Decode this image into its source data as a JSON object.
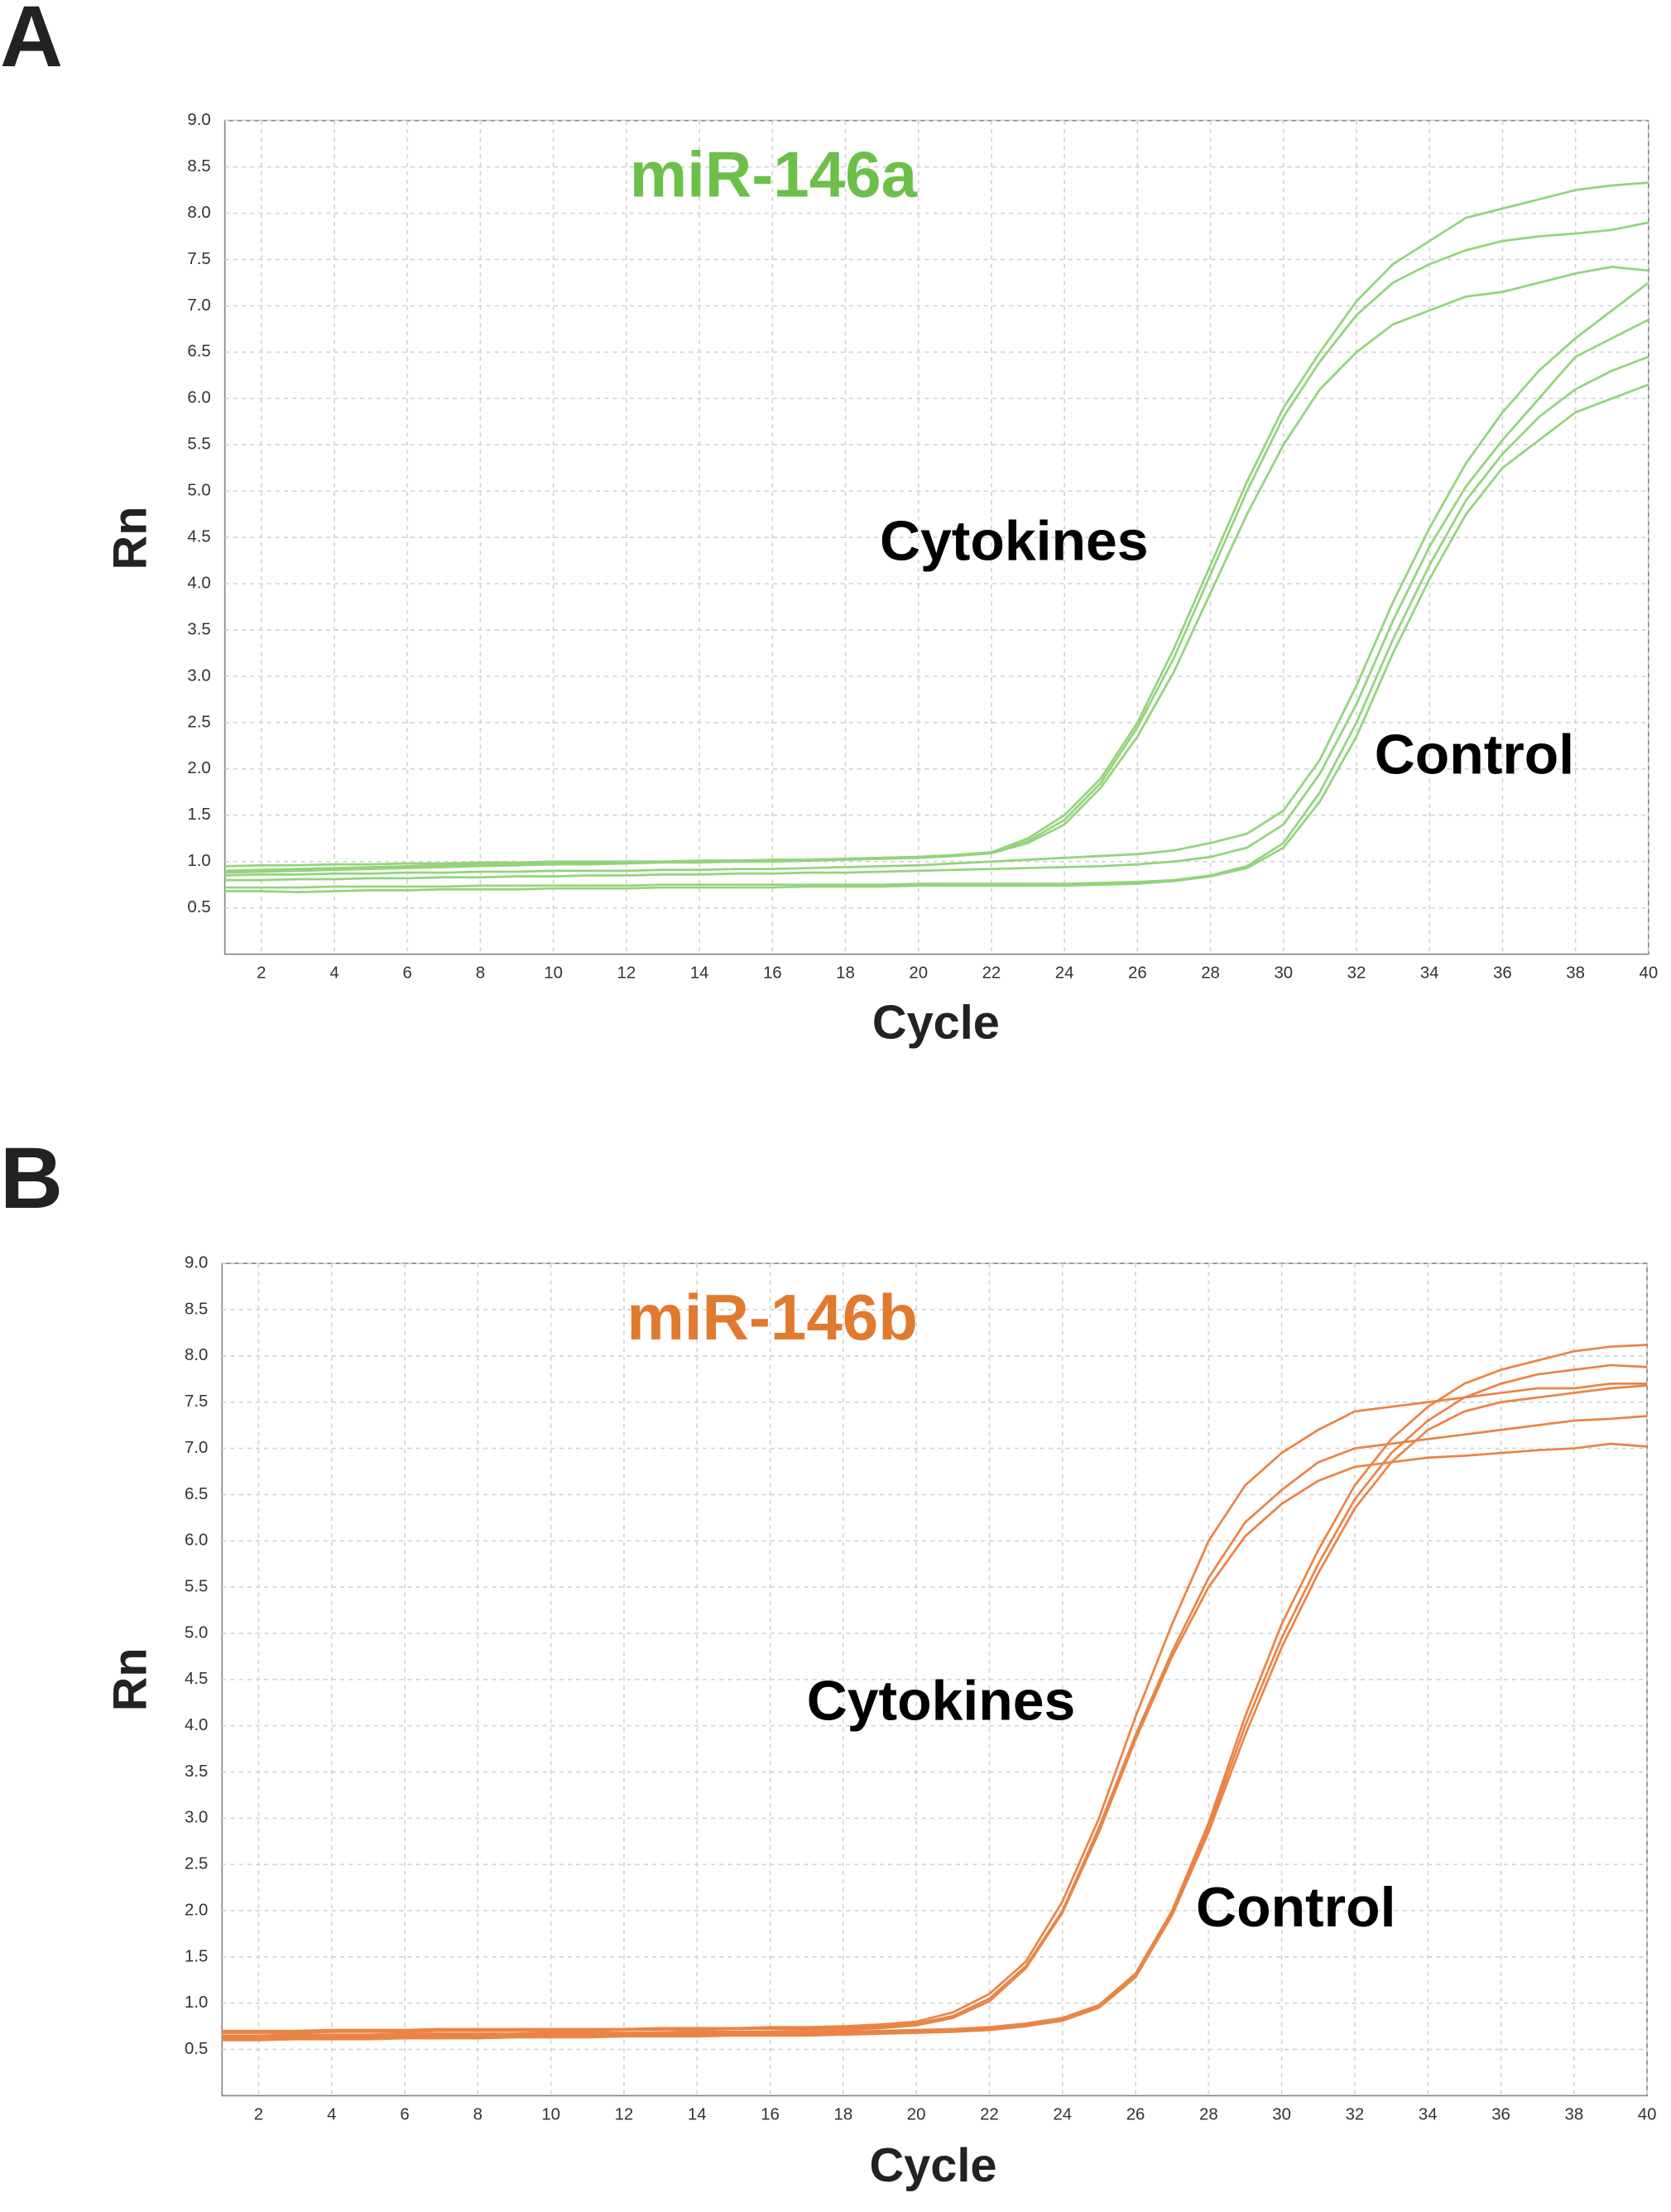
{
  "chart_data": [
    {
      "type": "line",
      "panel": "A",
      "title": "miR-146a",
      "title_color": "#6cc04a",
      "annotations": [
        "Cytokines",
        "Control"
      ],
      "xlabel": "Cycle",
      "ylabel": "Rn",
      "xlim": [
        1,
        40
      ],
      "ylim": [
        0,
        9
      ],
      "xticks": [
        2,
        4,
        6,
        8,
        10,
        12,
        14,
        16,
        18,
        20,
        22,
        24,
        26,
        28,
        30,
        32,
        34,
        36,
        38,
        40
      ],
      "yticks": [
        0.5,
        {
          "value": 1,
          "label": "1.0"
        },
        1.5,
        {
          "value": 2,
          "label": "2.0"
        },
        2.5,
        {
          "value": 3,
          "label": "3.0"
        },
        3.5,
        {
          "value": 4,
          "label": "4.0"
        },
        4.5,
        {
          "value": 5,
          "label": "5.0"
        },
        5.5,
        {
          "value": 6,
          "label": "6.0"
        },
        6.5,
        {
          "value": 7,
          "label": "7.0"
        },
        7.5,
        {
          "value": 8,
          "label": "8.0"
        },
        8.5,
        {
          "value": 9,
          "label": "9.0"
        }
      ],
      "grid": true,
      "x": [
        1,
        2,
        3,
        4,
        5,
        6,
        7,
        8,
        9,
        10,
        11,
        12,
        13,
        14,
        15,
        16,
        17,
        18,
        19,
        20,
        21,
        22,
        23,
        24,
        25,
        26,
        27,
        28,
        29,
        30,
        31,
        32,
        33,
        34,
        35,
        36,
        37,
        38,
        39,
        40
      ],
      "series": [
        {
          "color": "#92d47c",
          "values": [
            0.95,
            0.96,
            0.96,
            0.97,
            0.97,
            0.98,
            0.98,
            0.99,
            0.99,
            1.0,
            1.0,
            1.0,
            1.0,
            1.01,
            1.01,
            1.02,
            1.02,
            1.03,
            1.04,
            1.05,
            1.07,
            1.1,
            1.25,
            1.5,
            1.9,
            2.5,
            3.3,
            4.2,
            5.1,
            5.9,
            6.5,
            7.05,
            7.45,
            7.7,
            7.95,
            8.05,
            8.15,
            8.25,
            8.3,
            8.33
          ]
        },
        {
          "color": "#92d47c",
          "values": [
            0.9,
            0.91,
            0.92,
            0.93,
            0.94,
            0.95,
            0.96,
            0.97,
            0.98,
            0.98,
            0.99,
            1.0,
            1.0,
            1.0,
            1.01,
            1.01,
            1.02,
            1.03,
            1.04,
            1.05,
            1.07,
            1.1,
            1.22,
            1.45,
            1.85,
            2.45,
            3.2,
            4.1,
            5.0,
            5.8,
            6.4,
            6.9,
            7.25,
            7.45,
            7.6,
            7.7,
            7.75,
            7.78,
            7.82,
            7.9
          ]
        },
        {
          "color": "#92d47c",
          "values": [
            0.88,
            0.89,
            0.9,
            0.91,
            0.92,
            0.93,
            0.94,
            0.95,
            0.96,
            0.97,
            0.97,
            0.98,
            0.99,
            0.99,
            1.0,
            1.0,
            1.01,
            1.02,
            1.03,
            1.04,
            1.06,
            1.09,
            1.2,
            1.4,
            1.8,
            2.35,
            3.05,
            3.9,
            4.75,
            5.5,
            6.1,
            6.5,
            6.8,
            6.95,
            7.1,
            7.15,
            7.25,
            7.35,
            7.42,
            7.38
          ]
        },
        {
          "color": "#92d47c",
          "values": [
            0.85,
            0.86,
            0.86,
            0.87,
            0.87,
            0.88,
            0.88,
            0.89,
            0.89,
            0.9,
            0.9,
            0.9,
            0.91,
            0.91,
            0.92,
            0.92,
            0.93,
            0.94,
            0.95,
            0.96,
            0.98,
            1.0,
            1.02,
            1.04,
            1.06,
            1.08,
            1.12,
            1.2,
            1.3,
            1.55,
            2.1,
            2.9,
            3.8,
            4.6,
            5.3,
            5.85,
            6.3,
            6.65,
            6.95,
            7.25
          ]
        },
        {
          "color": "#92d47c",
          "values": [
            0.8,
            0.8,
            0.81,
            0.81,
            0.82,
            0.82,
            0.83,
            0.83,
            0.84,
            0.84,
            0.85,
            0.85,
            0.86,
            0.86,
            0.87,
            0.87,
            0.88,
            0.88,
            0.89,
            0.9,
            0.91,
            0.92,
            0.93,
            0.94,
            0.95,
            0.97,
            1.0,
            1.05,
            1.15,
            1.4,
            1.95,
            2.7,
            3.6,
            4.4,
            5.05,
            5.55,
            6.0,
            6.45,
            6.65,
            6.85
          ]
        },
        {
          "color": "#92d47c",
          "values": [
            0.72,
            0.72,
            0.72,
            0.73,
            0.73,
            0.73,
            0.73,
            0.74,
            0.74,
            0.74,
            0.74,
            0.74,
            0.75,
            0.75,
            0.75,
            0.75,
            0.75,
            0.75,
            0.75,
            0.76,
            0.76,
            0.76,
            0.76,
            0.76,
            0.77,
            0.78,
            0.8,
            0.85,
            0.95,
            1.2,
            1.75,
            2.5,
            3.4,
            4.2,
            4.9,
            5.4,
            5.8,
            6.1,
            6.3,
            6.45
          ]
        },
        {
          "color": "#92d47c",
          "values": [
            0.68,
            0.68,
            0.67,
            0.68,
            0.69,
            0.69,
            0.7,
            0.7,
            0.7,
            0.71,
            0.71,
            0.71,
            0.72,
            0.72,
            0.72,
            0.72,
            0.73,
            0.73,
            0.73,
            0.74,
            0.74,
            0.74,
            0.74,
            0.74,
            0.75,
            0.76,
            0.79,
            0.84,
            0.93,
            1.15,
            1.65,
            2.35,
            3.25,
            4.05,
            4.75,
            5.25,
            5.55,
            5.85,
            6.0,
            6.15
          ]
        }
      ]
    },
    {
      "type": "line",
      "panel": "B",
      "title": "miR-146b",
      "title_color": "#e07a2e",
      "annotations": [
        "Cytokines",
        "Control"
      ],
      "xlabel": "Cycle",
      "ylabel": "Rn",
      "xlim": [
        1,
        40
      ],
      "ylim": [
        0,
        9
      ],
      "xticks": [
        2,
        4,
        6,
        8,
        10,
        12,
        14,
        16,
        18,
        20,
        22,
        24,
        26,
        28,
        30,
        32,
        34,
        36,
        38,
        40
      ],
      "yticks": [
        0.5,
        {
          "value": 1,
          "label": "1.0"
        },
        1.5,
        {
          "value": 2,
          "label": "2.0"
        },
        2.5,
        {
          "value": 3,
          "label": "3.0"
        },
        3.5,
        {
          "value": 4,
          "label": "4.0"
        },
        4.5,
        {
          "value": 5,
          "label": "5.0"
        },
        5.5,
        {
          "value": 6,
          "label": "6.0"
        },
        6.5,
        {
          "value": 7,
          "label": "7.0"
        },
        7.5,
        {
          "value": 8,
          "label": "8.0"
        },
        8.5,
        {
          "value": 9,
          "label": "9.0"
        }
      ],
      "grid": true,
      "x": [
        1,
        2,
        3,
        4,
        5,
        6,
        7,
        8,
        9,
        10,
        11,
        12,
        13,
        14,
        15,
        16,
        17,
        18,
        19,
        20,
        21,
        22,
        23,
        24,
        25,
        26,
        27,
        28,
        29,
        30,
        31,
        32,
        33,
        34,
        35,
        36,
        37,
        38,
        39,
        40
      ],
      "series": [
        {
          "color": "#ea8446",
          "values": [
            0.7,
            0.7,
            0.7,
            0.71,
            0.71,
            0.71,
            0.72,
            0.72,
            0.72,
            0.72,
            0.72,
            0.72,
            0.73,
            0.73,
            0.73,
            0.74,
            0.74,
            0.75,
            0.77,
            0.8,
            0.9,
            1.1,
            1.45,
            2.1,
            3.0,
            4.1,
            5.1,
            6.0,
            6.6,
            6.95,
            7.2,
            7.4,
            7.45,
            7.5,
            7.55,
            7.6,
            7.65,
            7.65,
            7.7,
            7.7
          ]
        },
        {
          "color": "#ea8446",
          "values": [
            0.68,
            0.68,
            0.68,
            0.69,
            0.69,
            0.69,
            0.7,
            0.7,
            0.7,
            0.7,
            0.7,
            0.71,
            0.71,
            0.71,
            0.72,
            0.72,
            0.72,
            0.73,
            0.75,
            0.78,
            0.86,
            1.05,
            1.4,
            2.0,
            2.9,
            3.9,
            4.8,
            5.6,
            6.2,
            6.55,
            6.85,
            7.0,
            7.05,
            7.1,
            7.15,
            7.2,
            7.25,
            7.3,
            7.32,
            7.35
          ]
        },
        {
          "color": "#ea8446",
          "values": [
            0.65,
            0.65,
            0.66,
            0.66,
            0.66,
            0.67,
            0.67,
            0.67,
            0.67,
            0.68,
            0.68,
            0.68,
            0.68,
            0.69,
            0.69,
            0.69,
            0.7,
            0.71,
            0.73,
            0.76,
            0.84,
            1.02,
            1.38,
            1.98,
            2.85,
            3.85,
            4.75,
            5.5,
            6.05,
            6.4,
            6.65,
            6.8,
            6.85,
            6.9,
            6.92,
            6.95,
            6.98,
            7.0,
            7.05,
            7.02
          ]
        },
        {
          "color": "#ea8446",
          "values": [
            0.63,
            0.63,
            0.64,
            0.64,
            0.64,
            0.65,
            0.65,
            0.65,
            0.66,
            0.66,
            0.66,
            0.67,
            0.67,
            0.67,
            0.68,
            0.68,
            0.68,
            0.69,
            0.7,
            0.71,
            0.72,
            0.74,
            0.78,
            0.84,
            0.98,
            1.32,
            2.0,
            2.95,
            4.1,
            5.1,
            5.9,
            6.6,
            7.1,
            7.45,
            7.7,
            7.85,
            7.95,
            8.05,
            8.1,
            8.12
          ]
        },
        {
          "color": "#ea8446",
          "values": [
            0.62,
            0.62,
            0.62,
            0.63,
            0.63,
            0.63,
            0.64,
            0.64,
            0.64,
            0.65,
            0.65,
            0.65,
            0.66,
            0.66,
            0.66,
            0.67,
            0.67,
            0.67,
            0.68,
            0.69,
            0.7,
            0.72,
            0.76,
            0.82,
            0.96,
            1.3,
            1.98,
            2.9,
            4.0,
            4.95,
            5.75,
            6.45,
            6.95,
            7.3,
            7.55,
            7.7,
            7.8,
            7.85,
            7.9,
            7.88
          ]
        },
        {
          "color": "#ea8446",
          "values": [
            0.6,
            0.6,
            0.61,
            0.61,
            0.61,
            0.62,
            0.62,
            0.62,
            0.63,
            0.63,
            0.63,
            0.64,
            0.64,
            0.64,
            0.65,
            0.65,
            0.65,
            0.66,
            0.67,
            0.68,
            0.69,
            0.71,
            0.75,
            0.81,
            0.95,
            1.28,
            1.95,
            2.85,
            3.9,
            4.85,
            5.65,
            6.35,
            6.85,
            7.2,
            7.4,
            7.5,
            7.55,
            7.6,
            7.65,
            7.68
          ]
        }
      ]
    }
  ]
}
